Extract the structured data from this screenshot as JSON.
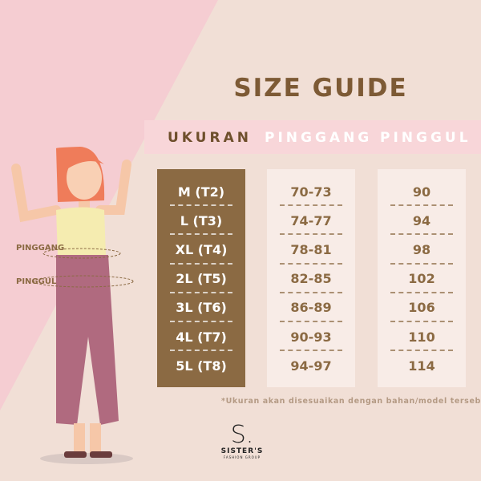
{
  "title": "SIZE GUIDE",
  "headers": {
    "size": "UKURAN",
    "waist": "PINGGANG",
    "hip": "PINGGUL"
  },
  "rows": [
    {
      "size": "M (T2)",
      "waist": "70-73",
      "hip": "90"
    },
    {
      "size": "L (T3)",
      "waist": "74-77",
      "hip": "94"
    },
    {
      "size": "XL (T4)",
      "waist": "78-81",
      "hip": "98"
    },
    {
      "size": "2L (T5)",
      "waist": "82-85",
      "hip": "102"
    },
    {
      "size": "3L (T6)",
      "waist": "86-89",
      "hip": "106"
    },
    {
      "size": "4L (T7)",
      "waist": "90-93",
      "hip": "110"
    },
    {
      "size": "5L (T8)",
      "waist": "94-97",
      "hip": "114"
    }
  ],
  "figure_labels": {
    "waist": "PINGGANG",
    "hip": "PINGGUL"
  },
  "note": "*Ukuran akan disesuaikan dengan bahan/model tersebut",
  "logo": {
    "mark": "S.",
    "name": "SISTER'S",
    "sub": "FASHION GROUP"
  },
  "colors": {
    "brown": "#8b6a43",
    "pink": "#f5cdd2",
    "background": "#f1dfd6"
  }
}
